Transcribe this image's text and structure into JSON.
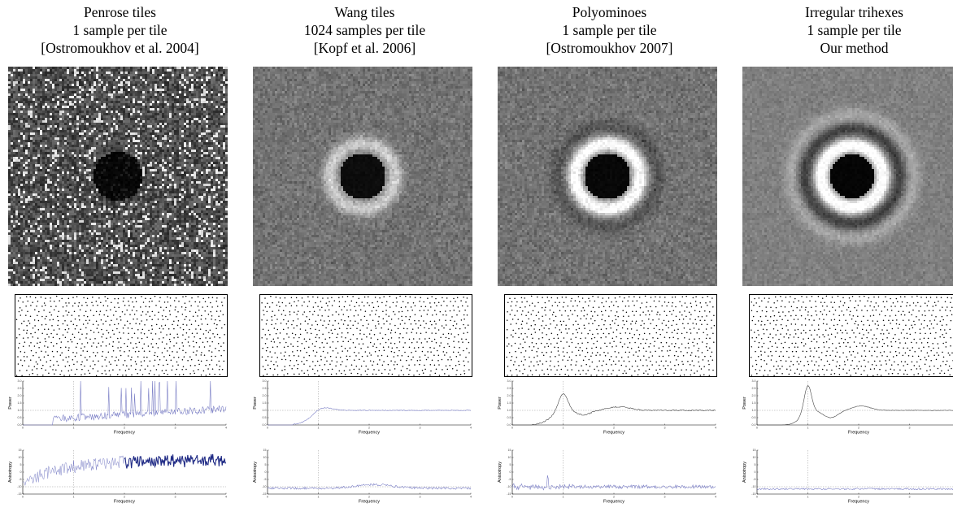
{
  "figure": {
    "columns": [
      {
        "id": "penrose",
        "caption": [
          "Penrose tiles",
          "1 sample per tile",
          "[Ostromoukhov et al. 2004]"
        ],
        "spectrum_style": "penrose",
        "power_plot": {
          "xlabel": "Frequency",
          "ylabel": "Power",
          "style": "spiky"
        },
        "anisotropy_plot": {
          "xlabel": "Frequency",
          "ylabel": "Anisotropy",
          "style": "high"
        }
      },
      {
        "id": "wang",
        "caption": [
          "Wang tiles",
          "1024 samples per tile",
          "[Kopf et al. 2006]"
        ],
        "spectrum_style": "wang",
        "power_plot": {
          "xlabel": "Frequency",
          "ylabel": "Power",
          "style": "soft"
        },
        "anisotropy_plot": {
          "xlabel": "Frequency",
          "ylabel": "Anisotropy",
          "style": "low"
        }
      },
      {
        "id": "polyominoes",
        "caption": [
          "Polyominoes",
          "1 sample per tile",
          "[Ostromoukhov 2007]"
        ],
        "spectrum_style": "poly",
        "power_plot": {
          "xlabel": "Frequency",
          "ylabel": "Power",
          "style": "peak"
        },
        "anisotropy_plot": {
          "xlabel": "Frequency",
          "ylabel": "Anisotropy",
          "style": "lowspike"
        }
      },
      {
        "id": "trihexes",
        "caption": [
          "Irregular trihexes",
          "1 sample per tile",
          "Our method"
        ],
        "spectrum_style": "tri",
        "power_plot": {
          "xlabel": "Frequency",
          "ylabel": "Power",
          "style": "strongpeak"
        },
        "anisotropy_plot": {
          "xlabel": "Frequency",
          "ylabel": "Anisotropy",
          "style": "flat"
        }
      }
    ]
  },
  "chart_data": [
    {
      "type": "line",
      "panel": "penrose-power",
      "xlabel": "Frequency",
      "ylabel": "Power",
      "xlim": [
        0,
        4
      ],
      "ylim": [
        0,
        3
      ],
      "x_ticks": [
        "0",
        "1",
        "2",
        "3",
        "4"
      ],
      "y_ticks": [
        "0.0",
        "0.5",
        "1.0",
        "1.5",
        "2.0",
        "2.5",
        "3.0"
      ]
    },
    {
      "type": "line",
      "panel": "wang-power",
      "xlabel": "Frequency",
      "ylabel": "Power",
      "xlim": [
        0,
        4
      ],
      "ylim": [
        0,
        3
      ],
      "peak": {
        "x": 1.05,
        "y": 1.3
      }
    },
    {
      "type": "line",
      "panel": "polyominoes-power",
      "xlabel": "Frequency",
      "ylabel": "Power",
      "xlim": [
        0,
        4
      ],
      "ylim": [
        0,
        3
      ],
      "peak": {
        "x": 1.0,
        "y": 2.2
      }
    },
    {
      "type": "line",
      "panel": "trihexes-power",
      "xlabel": "Frequency",
      "ylabel": "Power",
      "xlim": [
        0,
        4
      ],
      "ylim": [
        0,
        3
      ],
      "peak": {
        "x": 1.0,
        "y": 2.8
      }
    },
    {
      "type": "line",
      "panel": "penrose-anisotropy",
      "xlabel": "Frequency",
      "ylabel": "Anisotropy",
      "xlim": [
        0,
        4
      ],
      "ylim": [
        -15,
        15
      ]
    },
    {
      "type": "line",
      "panel": "wang-anisotropy",
      "xlabel": "Frequency",
      "ylabel": "Anisotropy",
      "xlim": [
        0,
        4
      ],
      "ylim": [
        -15,
        15
      ]
    },
    {
      "type": "line",
      "panel": "polyominoes-anisotropy",
      "xlabel": "Frequency",
      "ylabel": "Anisotropy",
      "xlim": [
        0,
        4
      ],
      "ylim": [
        -15,
        15
      ]
    },
    {
      "type": "line",
      "panel": "trihexes-anisotropy",
      "xlabel": "Frequency",
      "ylabel": "Anisotropy",
      "xlim": [
        0,
        4
      ],
      "ylim": [
        -15,
        15
      ]
    }
  ]
}
